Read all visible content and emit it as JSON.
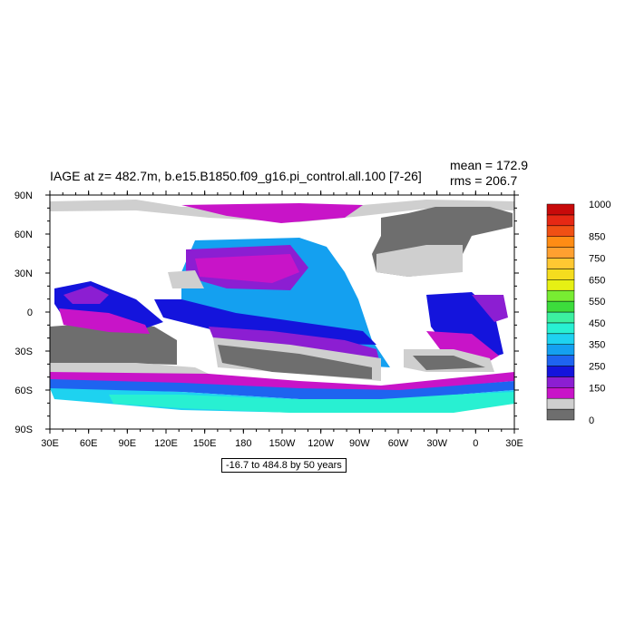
{
  "header": {
    "title": "IAGE at z= 482.7m, b.e15.B1850.f09_g16.pi_control.all.100 [7-26]",
    "mean_label": "mean = 172.9",
    "rms_label": "rms = 206.7"
  },
  "footer": {
    "range_label": "-16.7 to 484.8 by 50 years"
  },
  "chart_data": {
    "type": "heatmap",
    "title": "IAGE at z= 482.7m, b.e15.B1850.f09_g16.pi_control.all.100 [7-26]",
    "xlabel": "",
    "ylabel": "",
    "x_ticks": [
      "30E",
      "60E",
      "90E",
      "120E",
      "150E",
      "180",
      "150W",
      "120W",
      "90W",
      "60W",
      "30W",
      "0",
      "30E"
    ],
    "y_ticks": [
      "90N",
      "60N",
      "30N",
      "0",
      "30S",
      "60S",
      "90S"
    ],
    "xlim": [
      30,
      390
    ],
    "ylim": [
      -90,
      90
    ],
    "mean": 172.9,
    "rms": 206.7,
    "range": {
      "min": -16.7,
      "max": 484.8,
      "interval": 50,
      "units": "years"
    },
    "colorbar": {
      "levels": [
        0,
        50,
        100,
        150,
        200,
        250,
        300,
        350,
        400,
        450,
        500,
        550,
        600,
        650,
        700,
        750,
        800,
        850,
        900,
        950,
        1000
      ],
      "labels": [
        "0",
        "150",
        "250",
        "350",
        "450",
        "550",
        "650",
        "750",
        "850",
        "1000"
      ],
      "colors": [
        "#6e6e6e",
        "#cfcfcf",
        "#c814c8",
        "#8c1ed2",
        "#1414dc",
        "#1e64f0",
        "#14a0f0",
        "#1ed2f0",
        "#28f0d2",
        "#3cf0a0",
        "#3cdc3c",
        "#78ec32",
        "#e6f014",
        "#f5dc1e",
        "#ffc832",
        "#ffa030",
        "#ff8c14",
        "#f05014",
        "#e62814",
        "#c80a0a"
      ]
    }
  }
}
